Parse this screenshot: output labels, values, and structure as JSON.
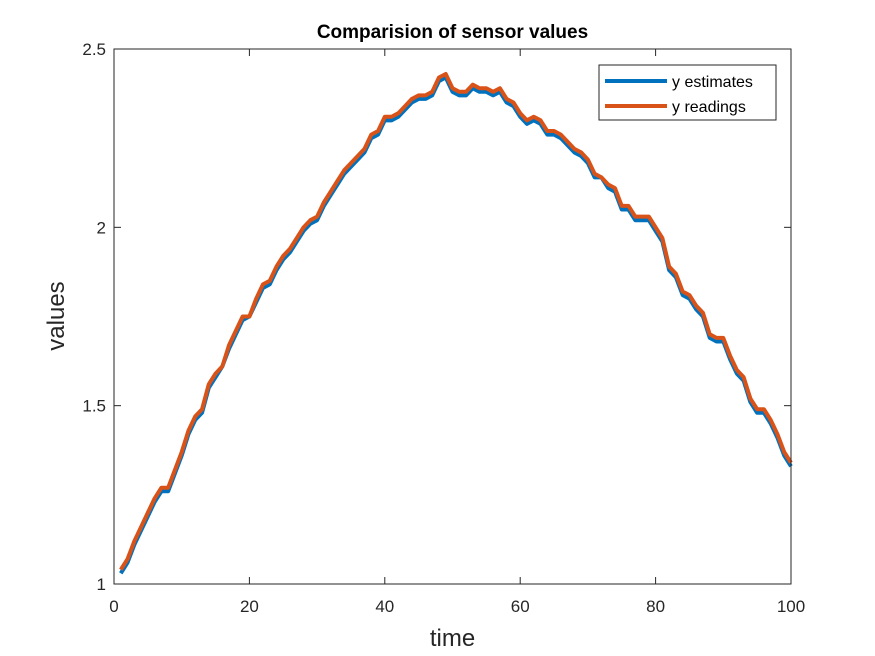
{
  "chart_data": {
    "type": "line",
    "title": "Comparision of sensor values",
    "xlabel": "time",
    "ylabel": "values",
    "xlim": [
      0,
      100
    ],
    "ylim": [
      1,
      2.5
    ],
    "xticks": [
      0,
      20,
      40,
      60,
      80,
      100
    ],
    "xtick_labels": [
      "0",
      "20",
      "40",
      "60",
      "80",
      "100"
    ],
    "yticks": [
      1,
      1.5,
      2,
      2.5
    ],
    "ytick_labels": [
      "1",
      "1.5",
      "2",
      "2.5"
    ],
    "grid": false,
    "legend_position": "top-right",
    "x": [
      1,
      2,
      3,
      4,
      5,
      6,
      7,
      8,
      9,
      10,
      11,
      12,
      13,
      14,
      15,
      16,
      17,
      18,
      19,
      20,
      21,
      22,
      23,
      24,
      25,
      26,
      27,
      28,
      29,
      30,
      31,
      32,
      33,
      34,
      35,
      36,
      37,
      38,
      39,
      40,
      41,
      42,
      43,
      44,
      45,
      46,
      47,
      48,
      49,
      50,
      51,
      52,
      53,
      54,
      55,
      56,
      57,
      58,
      59,
      60,
      61,
      62,
      63,
      64,
      65,
      66,
      67,
      68,
      69,
      70,
      71,
      72,
      73,
      74,
      75,
      76,
      77,
      78,
      79,
      80,
      81,
      82,
      83,
      84,
      85,
      86,
      87,
      88,
      89,
      90,
      91,
      92,
      93,
      94,
      95,
      96,
      97,
      98,
      99,
      100
    ],
    "series": [
      {
        "name": "y estimates",
        "color": "#0072bd",
        "values": [
          1.03,
          1.06,
          1.11,
          1.15,
          1.19,
          1.23,
          1.26,
          1.26,
          1.31,
          1.36,
          1.42,
          1.46,
          1.48,
          1.55,
          1.58,
          1.61,
          1.66,
          1.7,
          1.74,
          1.75,
          1.79,
          1.83,
          1.84,
          1.88,
          1.91,
          1.93,
          1.96,
          1.99,
          2.01,
          2.02,
          2.06,
          2.09,
          2.12,
          2.15,
          2.17,
          2.19,
          2.21,
          2.25,
          2.26,
          2.3,
          2.3,
          2.31,
          2.33,
          2.35,
          2.36,
          2.36,
          2.37,
          2.41,
          2.42,
          2.38,
          2.37,
          2.37,
          2.39,
          2.38,
          2.38,
          2.37,
          2.38,
          2.35,
          2.34,
          2.31,
          2.29,
          2.3,
          2.29,
          2.26,
          2.26,
          2.25,
          2.23,
          2.21,
          2.2,
          2.18,
          2.14,
          2.14,
          2.11,
          2.1,
          2.05,
          2.05,
          2.02,
          2.02,
          2.02,
          1.99,
          1.96,
          1.88,
          1.86,
          1.81,
          1.8,
          1.77,
          1.75,
          1.69,
          1.68,
          1.68,
          1.63,
          1.59,
          1.57,
          1.51,
          1.48,
          1.48,
          1.45,
          1.41,
          1.36,
          1.33
        ]
      },
      {
        "name": "y readings",
        "color": "#d95319",
        "values": [
          1.04,
          1.07,
          1.12,
          1.16,
          1.2,
          1.24,
          1.27,
          1.27,
          1.32,
          1.37,
          1.43,
          1.47,
          1.49,
          1.56,
          1.59,
          1.61,
          1.67,
          1.71,
          1.75,
          1.75,
          1.8,
          1.84,
          1.85,
          1.89,
          1.92,
          1.94,
          1.97,
          2.0,
          2.02,
          2.03,
          2.07,
          2.1,
          2.13,
          2.16,
          2.18,
          2.2,
          2.22,
          2.26,
          2.27,
          2.31,
          2.31,
          2.32,
          2.34,
          2.36,
          2.37,
          2.37,
          2.38,
          2.42,
          2.43,
          2.39,
          2.38,
          2.38,
          2.4,
          2.39,
          2.39,
          2.38,
          2.39,
          2.36,
          2.35,
          2.32,
          2.3,
          2.31,
          2.3,
          2.27,
          2.27,
          2.26,
          2.24,
          2.22,
          2.21,
          2.19,
          2.15,
          2.14,
          2.12,
          2.11,
          2.06,
          2.06,
          2.03,
          2.03,
          2.03,
          2.0,
          1.97,
          1.89,
          1.87,
          1.82,
          1.81,
          1.78,
          1.76,
          1.7,
          1.69,
          1.69,
          1.64,
          1.6,
          1.58,
          1.52,
          1.49,
          1.49,
          1.46,
          1.42,
          1.37,
          1.34
        ]
      }
    ]
  }
}
